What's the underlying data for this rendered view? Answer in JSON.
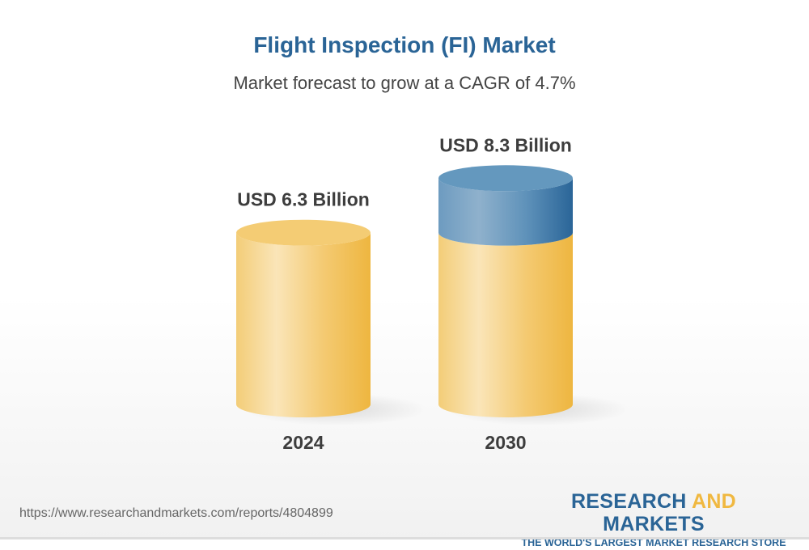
{
  "title": "Flight Inspection (FI) Market",
  "subtitle": "Market forecast to grow at a CAGR of 4.7%",
  "chart_data": {
    "type": "bar",
    "style": "3d-cylinder",
    "categories": [
      "2024",
      "2030"
    ],
    "values": [
      6.3,
      8.3
    ],
    "data_labels": [
      "USD 6.3 Billion",
      "USD 8.3 Billion"
    ],
    "unit": "USD Billion",
    "colors": {
      "base": "#f0b840",
      "growth": "#2a6496"
    }
  },
  "footer": {
    "url": "https://www.researchandmarkets.com/reports/4804899",
    "logo_part1": "RESEARCH ",
    "logo_part2": "AND",
    "logo_part3": " MARKETS",
    "tagline": "THE WORLD'S LARGEST MARKET RESEARCH STORE"
  }
}
